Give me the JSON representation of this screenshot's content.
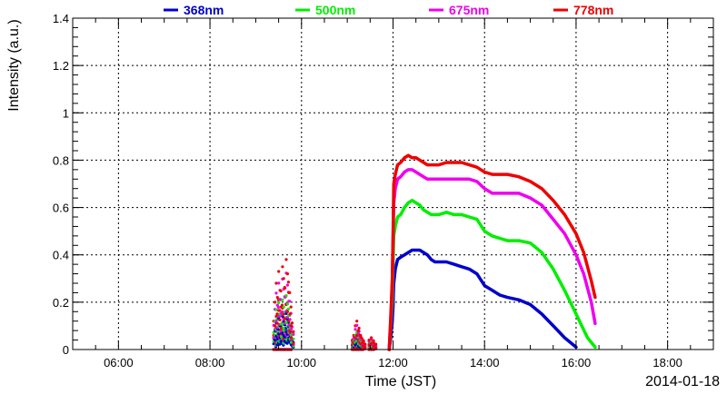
{
  "chart_data": {
    "type": "line",
    "title": "",
    "xlabel": "Time (JST)",
    "ylabel": "Intensity (a.u.)",
    "date_label": "2014-01-18",
    "xlim": [
      "05:00",
      "19:00"
    ],
    "ylim": [
      0,
      1.4
    ],
    "grid": true,
    "legend_position": "top",
    "x_ticks": [
      "06:00",
      "08:00",
      "10:00",
      "12:00",
      "14:00",
      "16:00",
      "18:00"
    ],
    "y_ticks": [
      "0",
      "0.2",
      "0.4",
      "0.6",
      "0.8",
      "1",
      "1.2",
      "1.4"
    ],
    "series": [
      {
        "name": "368nm",
        "color": "#0000cc",
        "points": [
          [
            "11:55",
            0.0
          ],
          [
            "11:57",
            0.05
          ],
          [
            "11:59",
            0.12
          ],
          [
            "12:00",
            0.18
          ],
          [
            "12:01",
            0.28
          ],
          [
            "12:03",
            0.34
          ],
          [
            "12:06",
            0.38
          ],
          [
            "12:10",
            0.39
          ],
          [
            "12:15",
            0.4
          ],
          [
            "12:20",
            0.41
          ],
          [
            "12:25",
            0.42
          ],
          [
            "12:30",
            0.42
          ],
          [
            "12:35",
            0.42
          ],
          [
            "12:40",
            0.41
          ],
          [
            "12:45",
            0.4
          ],
          [
            "12:50",
            0.38
          ],
          [
            "12:55",
            0.37
          ],
          [
            "13:00",
            0.37
          ],
          [
            "13:10",
            0.37
          ],
          [
            "13:20",
            0.36
          ],
          [
            "13:30",
            0.35
          ],
          [
            "13:40",
            0.34
          ],
          [
            "13:50",
            0.32
          ],
          [
            "14:00",
            0.27
          ],
          [
            "14:10",
            0.25
          ],
          [
            "14:20",
            0.23
          ],
          [
            "14:30",
            0.22
          ],
          [
            "14:45",
            0.21
          ],
          [
            "15:00",
            0.19
          ],
          [
            "15:15",
            0.15
          ],
          [
            "15:30",
            0.1
          ],
          [
            "15:45",
            0.05
          ],
          [
            "16:00",
            0.01
          ]
        ]
      },
      {
        "name": "500nm",
        "color": "#00ee00",
        "points": [
          [
            "11:55",
            0.0
          ],
          [
            "11:57",
            0.1
          ],
          [
            "11:59",
            0.22
          ],
          [
            "12:00",
            0.35
          ],
          [
            "12:01",
            0.48
          ],
          [
            "12:03",
            0.52
          ],
          [
            "12:06",
            0.56
          ],
          [
            "12:10",
            0.57
          ],
          [
            "12:15",
            0.6
          ],
          [
            "12:20",
            0.62
          ],
          [
            "12:25",
            0.63
          ],
          [
            "12:30",
            0.62
          ],
          [
            "12:35",
            0.61
          ],
          [
            "12:40",
            0.59
          ],
          [
            "12:45",
            0.58
          ],
          [
            "12:50",
            0.57
          ],
          [
            "12:55",
            0.57
          ],
          [
            "13:00",
            0.57
          ],
          [
            "13:10",
            0.58
          ],
          [
            "13:20",
            0.57
          ],
          [
            "13:30",
            0.57
          ],
          [
            "13:40",
            0.56
          ],
          [
            "13:50",
            0.55
          ],
          [
            "14:00",
            0.5
          ],
          [
            "14:10",
            0.48
          ],
          [
            "14:20",
            0.47
          ],
          [
            "14:30",
            0.46
          ],
          [
            "14:45",
            0.46
          ],
          [
            "15:00",
            0.45
          ],
          [
            "15:15",
            0.41
          ],
          [
            "15:30",
            0.34
          ],
          [
            "15:45",
            0.25
          ],
          [
            "16:00",
            0.15
          ],
          [
            "16:15",
            0.05
          ],
          [
            "16:25",
            0.01
          ]
        ]
      },
      {
        "name": "675nm",
        "color": "#ee00ee",
        "points": [
          [
            "11:55",
            0.0
          ],
          [
            "11:57",
            0.12
          ],
          [
            "11:59",
            0.28
          ],
          [
            "12:00",
            0.45
          ],
          [
            "12:01",
            0.62
          ],
          [
            "12:03",
            0.68
          ],
          [
            "12:06",
            0.72
          ],
          [
            "12:10",
            0.73
          ],
          [
            "12:15",
            0.75
          ],
          [
            "12:20",
            0.76
          ],
          [
            "12:25",
            0.76
          ],
          [
            "12:30",
            0.75
          ],
          [
            "12:35",
            0.74
          ],
          [
            "12:40",
            0.73
          ],
          [
            "12:45",
            0.72
          ],
          [
            "12:50",
            0.72
          ],
          [
            "12:55",
            0.72
          ],
          [
            "13:00",
            0.72
          ],
          [
            "13:10",
            0.72
          ],
          [
            "13:20",
            0.72
          ],
          [
            "13:30",
            0.72
          ],
          [
            "13:40",
            0.72
          ],
          [
            "13:50",
            0.71
          ],
          [
            "14:00",
            0.68
          ],
          [
            "14:10",
            0.66
          ],
          [
            "14:20",
            0.66
          ],
          [
            "14:30",
            0.66
          ],
          [
            "14:45",
            0.66
          ],
          [
            "15:00",
            0.64
          ],
          [
            "15:15",
            0.61
          ],
          [
            "15:30",
            0.55
          ],
          [
            "15:45",
            0.49
          ],
          [
            "16:00",
            0.4
          ],
          [
            "16:10",
            0.32
          ],
          [
            "16:20",
            0.2
          ],
          [
            "16:25",
            0.11
          ]
        ]
      },
      {
        "name": "778nm",
        "color": "#ee0000",
        "points": [
          [
            "11:55",
            0.0
          ],
          [
            "11:57",
            0.14
          ],
          [
            "11:59",
            0.3
          ],
          [
            "12:00",
            0.48
          ],
          [
            "12:01",
            0.7
          ],
          [
            "12:03",
            0.74
          ],
          [
            "12:06",
            0.78
          ],
          [
            "12:10",
            0.79
          ],
          [
            "12:15",
            0.81
          ],
          [
            "12:20",
            0.82
          ],
          [
            "12:25",
            0.81
          ],
          [
            "12:30",
            0.81
          ],
          [
            "12:35",
            0.8
          ],
          [
            "12:40",
            0.79
          ],
          [
            "12:45",
            0.78
          ],
          [
            "12:50",
            0.78
          ],
          [
            "12:55",
            0.78
          ],
          [
            "13:00",
            0.78
          ],
          [
            "13:10",
            0.79
          ],
          [
            "13:20",
            0.79
          ],
          [
            "13:30",
            0.79
          ],
          [
            "13:40",
            0.78
          ],
          [
            "13:50",
            0.77
          ],
          [
            "14:00",
            0.75
          ],
          [
            "14:10",
            0.74
          ],
          [
            "14:20",
            0.74
          ],
          [
            "14:30",
            0.74
          ],
          [
            "14:45",
            0.73
          ],
          [
            "15:00",
            0.71
          ],
          [
            "15:15",
            0.68
          ],
          [
            "15:30",
            0.63
          ],
          [
            "15:45",
            0.57
          ],
          [
            "16:00",
            0.49
          ],
          [
            "16:10",
            0.41
          ],
          [
            "16:20",
            0.29
          ],
          [
            "16:25",
            0.22
          ]
        ]
      }
    ],
    "scatter_bursts": [
      {
        "from": "09:25",
        "to": "09:48",
        "peaks": [
          0.12,
          0.2,
          0.28,
          0.22,
          0.33,
          0.25,
          0.18,
          0.35,
          0.3,
          0.26,
          0.38,
          0.32,
          0.24,
          0.15,
          0.1
        ]
      },
      {
        "from": "11:08",
        "to": "11:22",
        "peaks": [
          0.04,
          0.06,
          0.1,
          0.12,
          0.08,
          0.06,
          0.05,
          0.03
        ]
      },
      {
        "from": "11:30",
        "to": "11:36",
        "peaks": [
          0.04,
          0.05,
          0.03
        ]
      }
    ]
  }
}
